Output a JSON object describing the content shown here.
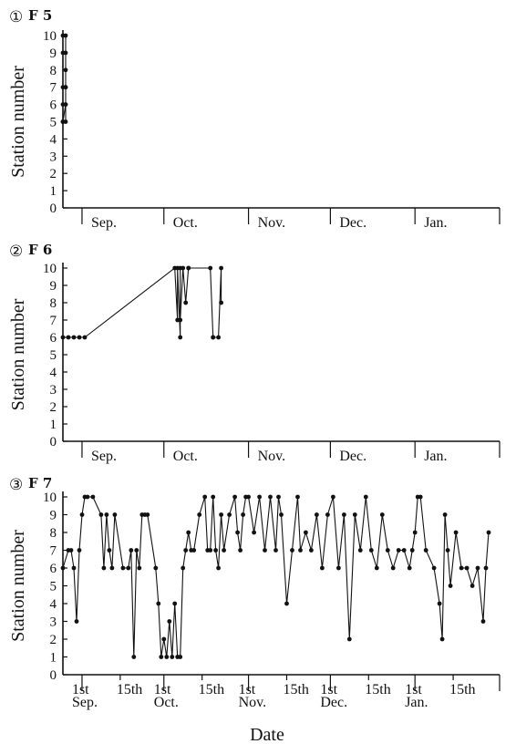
{
  "chart_data": [
    {
      "type": "line",
      "panel_number": "①",
      "title": "F 5",
      "ylabel": "Station number",
      "ylim": [
        0,
        10
      ],
      "yticks": [
        "0",
        "1",
        "2",
        "3",
        "4",
        "5",
        "6",
        "7",
        "8",
        "9",
        "10"
      ],
      "x_range": [
        "08-25",
        "02-01"
      ],
      "months": [
        "Sep.",
        "Oct.",
        "Nov.",
        "Dec.",
        "Jan."
      ],
      "x": [
        "08-25",
        "08-25",
        "08-25",
        "08-25",
        "08-25",
        "08-25",
        "08-26",
        "08-26",
        "08-26",
        "08-26",
        "08-26",
        "08-26",
        "08-26",
        "08-26"
      ],
      "y": [
        5,
        7,
        6,
        9,
        10,
        5,
        6,
        7,
        8,
        10,
        9,
        6,
        7,
        5
      ]
    },
    {
      "type": "line",
      "panel_number": "②",
      "title": "F 6",
      "ylabel": "Station number",
      "ylim": [
        0,
        10
      ],
      "yticks": [
        "0",
        "1",
        "2",
        "3",
        "4",
        "5",
        "6",
        "7",
        "8",
        "9",
        "10"
      ],
      "x_range": [
        "08-25",
        "02-01"
      ],
      "months": [
        "Sep.",
        "Oct.",
        "Nov.",
        "Dec.",
        "Jan."
      ],
      "x": [
        "08-25",
        "08-27",
        "08-29",
        "08-31",
        "09-02",
        "10-05",
        "10-06",
        "10-06",
        "10-07",
        "10-07",
        "10-07",
        "10-08",
        "10-09",
        "10-10",
        "10-10",
        "10-18",
        "10-19",
        "10-19",
        "10-21",
        "10-22",
        "10-22"
      ],
      "y": [
        6,
        6,
        6,
        6,
        6,
        10,
        7,
        10,
        6,
        10,
        7,
        10,
        8,
        10,
        10,
        10,
        6,
        6,
        6,
        10,
        8
      ]
    },
    {
      "type": "line",
      "panel_number": "③",
      "title": "F 7",
      "ylabel": "Station number",
      "xlabel": "Date",
      "ylim": [
        0,
        10
      ],
      "yticks": [
        "0",
        "1",
        "2",
        "3",
        "4",
        "5",
        "6",
        "7",
        "8",
        "9",
        "10"
      ],
      "x_range": [
        "08-25",
        "02-01"
      ],
      "months": [
        "Sep.",
        "Oct.",
        "Nov.",
        "Dec.",
        "Jan."
      ],
      "month_sub": [
        "1st",
        "1st",
        "1st",
        "1st",
        "1st"
      ],
      "mid_labels": [
        "15th",
        "15th",
        "15th",
        "15th",
        "15th"
      ],
      "x": [
        "08-25",
        "08-27",
        "08-28",
        "08-29",
        "08-30",
        "08-31",
        "09-01",
        "09-02",
        "09-03",
        "09-05",
        "09-08",
        "09-09",
        "09-10",
        "09-11",
        "09-12",
        "09-13",
        "09-16",
        "09-18",
        "09-19",
        "09-20",
        "09-21",
        "09-22",
        "09-23",
        "09-24",
        "09-25",
        "09-28",
        "09-29",
        "09-30",
        "10-01",
        "10-02",
        "10-03",
        "10-04",
        "10-05",
        "10-06",
        "10-07",
        "10-08",
        "10-09",
        "10-10",
        "10-11",
        "10-12",
        "10-14",
        "10-16",
        "10-17",
        "10-18",
        "10-19",
        "10-20",
        "10-21",
        "10-22",
        "10-23",
        "10-25",
        "10-27",
        "10-28",
        "10-29",
        "10-30",
        "10-31",
        "11-01",
        "11-03",
        "11-05",
        "11-07",
        "11-09",
        "11-11",
        "11-12",
        "11-13",
        "11-15",
        "11-17",
        "11-19",
        "11-20",
        "11-22",
        "11-24",
        "11-26",
        "11-28",
        "11-30",
        "12-02",
        "12-04",
        "12-06",
        "12-08",
        "12-10",
        "12-12",
        "12-14",
        "12-16",
        "12-18",
        "12-20",
        "12-22",
        "12-24",
        "12-26",
        "12-28",
        "12-30",
        "12-31",
        "01-01",
        "01-02",
        "01-03",
        "01-05",
        "01-08",
        "01-10",
        "01-11",
        "01-12",
        "01-13",
        "01-14",
        "01-16",
        "01-18",
        "01-20",
        "01-22",
        "01-24",
        "01-26",
        "01-27",
        "01-28"
      ],
      "y": [
        6,
        7,
        7,
        6,
        3,
        7,
        9,
        10,
        10,
        10,
        9,
        6,
        9,
        7,
        6,
        9,
        6,
        6,
        7,
        1,
        7,
        6,
        9,
        9,
        9,
        6,
        4,
        1,
        2,
        1,
        3,
        1,
        4,
        1,
        1,
        6,
        7,
        8,
        7,
        7,
        9,
        10,
        7,
        7,
        10,
        7,
        6,
        9,
        7,
        9,
        10,
        8,
        7,
        9,
        10,
        10,
        8,
        10,
        7,
        10,
        7,
        10,
        9,
        4,
        7,
        10,
        7,
        8,
        7,
        9,
        6,
        9,
        10,
        6,
        9,
        2,
        9,
        7,
        10,
        7,
        6,
        9,
        7,
        6,
        7,
        7,
        6,
        7,
        8,
        10,
        10,
        7,
        6,
        4,
        2,
        9,
        7,
        5,
        8,
        6,
        6,
        5,
        6,
        3,
        6,
        8
      ]
    }
  ]
}
